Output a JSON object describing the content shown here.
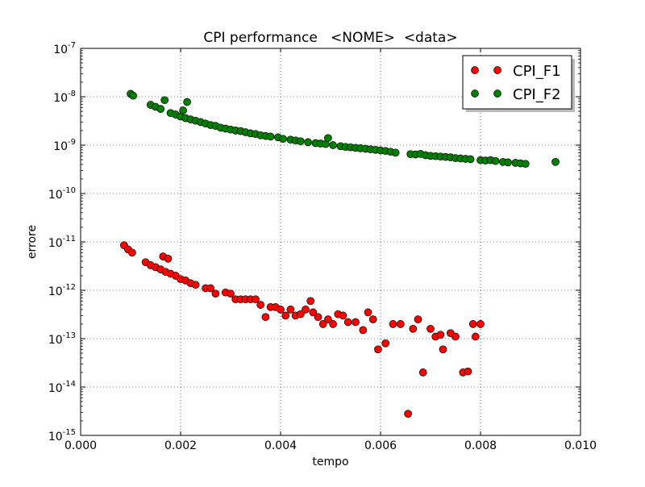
{
  "chart_data": {
    "type": "scatter",
    "title": "CPI performance   <NOME>  <data>",
    "xlabel": "tempo",
    "ylabel": "errore",
    "xlim": [
      0.0,
      0.01
    ],
    "ylim_log10": [
      -15,
      -7
    ],
    "yscale": "log",
    "grid": true,
    "legend_position": "top-right",
    "x_ticks": [
      "0.000",
      "0.002",
      "0.004",
      "0.006",
      "0.008",
      "0.010"
    ],
    "y_ticks": [
      {
        "base": "10",
        "exp": "-15"
      },
      {
        "base": "10",
        "exp": "-14"
      },
      {
        "base": "10",
        "exp": "-13"
      },
      {
        "base": "10",
        "exp": "-12"
      },
      {
        "base": "10",
        "exp": "-11"
      },
      {
        "base": "10",
        "exp": "-10"
      },
      {
        "base": "10",
        "exp": "-9"
      },
      {
        "base": "10",
        "exp": "-8"
      },
      {
        "base": "10",
        "exp": "-7"
      }
    ],
    "series": [
      {
        "name": "CPI_F1",
        "color": "#ff0000",
        "points": [
          [
            0.00087,
            8.5e-12
          ],
          [
            0.00095,
            7e-12
          ],
          [
            0.00103,
            6e-12
          ],
          [
            0.0013,
            3.8e-12
          ],
          [
            0.0014,
            3.3e-12
          ],
          [
            0.0015,
            3e-12
          ],
          [
            0.0016,
            2.7e-12
          ],
          [
            0.00165,
            5e-12
          ],
          [
            0.0017,
            2.4e-12
          ],
          [
            0.00175,
            4.5e-12
          ],
          [
            0.0018,
            2.2e-12
          ],
          [
            0.0019,
            2e-12
          ],
          [
            0.002,
            1.7e-12
          ],
          [
            0.0021,
            1.6e-12
          ],
          [
            0.0022,
            1.4e-12
          ],
          [
            0.0023,
            1.3e-12
          ],
          [
            0.0025,
            1.1e-12
          ],
          [
            0.0026,
            1.1e-12
          ],
          [
            0.0027,
            8.5e-13
          ],
          [
            0.0029,
            9e-13
          ],
          [
            0.003,
            8.5e-13
          ],
          [
            0.0031,
            6.5e-13
          ],
          [
            0.0032,
            6.5e-13
          ],
          [
            0.0033,
            6.5e-13
          ],
          [
            0.0034,
            6.5e-13
          ],
          [
            0.0035,
            6.5e-13
          ],
          [
            0.0036,
            5e-13
          ],
          [
            0.0037,
            2.8e-13
          ],
          [
            0.0038,
            4.5e-13
          ],
          [
            0.0039,
            4.5e-13
          ],
          [
            0.004,
            4e-13
          ],
          [
            0.0041,
            3e-13
          ],
          [
            0.0042,
            4e-13
          ],
          [
            0.0043,
            3e-13
          ],
          [
            0.0044,
            3.2e-13
          ],
          [
            0.0045,
            4e-13
          ],
          [
            0.0046,
            6e-13
          ],
          [
            0.00465,
            3.5e-13
          ],
          [
            0.00475,
            2.8e-13
          ],
          [
            0.00485,
            2e-13
          ],
          [
            0.00495,
            2.5e-13
          ],
          [
            0.00505,
            2e-13
          ],
          [
            0.00515,
            3.2e-13
          ],
          [
            0.00525,
            3e-13
          ],
          [
            0.00535,
            2.2e-13
          ],
          [
            0.0055,
            2.2e-13
          ],
          [
            0.00565,
            1.5e-13
          ],
          [
            0.00575,
            3.5e-13
          ],
          [
            0.00585,
            2.5e-13
          ],
          [
            0.00595,
            6e-14
          ],
          [
            0.0061,
            8e-14
          ],
          [
            0.00625,
            2e-13
          ],
          [
            0.0064,
            2e-13
          ],
          [
            0.00655,
            2.8e-15
          ],
          [
            0.00665,
            1.6e-13
          ],
          [
            0.00675,
            2.5e-13
          ],
          [
            0.00685,
            2e-14
          ],
          [
            0.007,
            1.6e-13
          ],
          [
            0.0071,
            1.1e-13
          ],
          [
            0.0072,
            1.2e-13
          ],
          [
            0.00725,
            6e-14
          ],
          [
            0.0074,
            1.3e-13
          ],
          [
            0.0075,
            1.1e-13
          ],
          [
            0.00765,
            2e-14
          ],
          [
            0.00775,
            2.1e-14
          ],
          [
            0.00785,
            2e-13
          ],
          [
            0.0079,
            1.1e-13
          ],
          [
            0.008,
            2e-13
          ]
        ]
      },
      {
        "name": "CPI_F2",
        "color": "#008000",
        "points": [
          [
            0.001,
            1.15e-08
          ],
          [
            0.00105,
            1.05e-08
          ],
          [
            0.0014,
            6.8e-09
          ],
          [
            0.0015,
            6.2e-09
          ],
          [
            0.0016,
            5.6e-09
          ],
          [
            0.00168,
            8.5e-09
          ],
          [
            0.0018,
            4.6e-09
          ],
          [
            0.0019,
            4.3e-09
          ],
          [
            0.002,
            3.9e-09
          ],
          [
            0.00205,
            5.2e-09
          ],
          [
            0.0021,
            3.6e-09
          ],
          [
            0.00213,
            7.8e-09
          ],
          [
            0.0022,
            3.4e-09
          ],
          [
            0.0023,
            3.2e-09
          ],
          [
            0.0024,
            3e-09
          ],
          [
            0.0025,
            2.8e-09
          ],
          [
            0.0026,
            2.6e-09
          ],
          [
            0.0027,
            2.5e-09
          ],
          [
            0.0028,
            2.3e-09
          ],
          [
            0.0029,
            2.2e-09
          ],
          [
            0.003,
            2.1e-09
          ],
          [
            0.0031,
            2e-09
          ],
          [
            0.0032,
            1.95e-09
          ],
          [
            0.0033,
            1.85e-09
          ],
          [
            0.0034,
            1.75e-09
          ],
          [
            0.0035,
            1.7e-09
          ],
          [
            0.0036,
            1.6e-09
          ],
          [
            0.0037,
            1.55e-09
          ],
          [
            0.0038,
            1.5e-09
          ],
          [
            0.00395,
            1.45e-09
          ],
          [
            0.00405,
            1.35e-09
          ],
          [
            0.0042,
            1.3e-09
          ],
          [
            0.0043,
            1.25e-09
          ],
          [
            0.0044,
            1.2e-09
          ],
          [
            0.00455,
            1.15e-09
          ],
          [
            0.0047,
            1.1e-09
          ],
          [
            0.0048,
            1.08e-09
          ],
          [
            0.0049,
            1.05e-09
          ],
          [
            0.00495,
            1.4e-09
          ],
          [
            0.00505,
            1e-09
          ],
          [
            0.0052,
            9.5e-10
          ],
          [
            0.0053,
            9.2e-10
          ],
          [
            0.0054,
            9e-10
          ],
          [
            0.0055,
            8.8e-10
          ],
          [
            0.0056,
            8.6e-10
          ],
          [
            0.0057,
            8.4e-10
          ],
          [
            0.0058,
            8.2e-10
          ],
          [
            0.0059,
            8e-10
          ],
          [
            0.006,
            7.8e-10
          ],
          [
            0.0061,
            7.6e-10
          ],
          [
            0.0062,
            7.3e-10
          ],
          [
            0.0063,
            7e-10
          ],
          [
            0.0066,
            6.5e-10
          ],
          [
            0.0067,
            6.4e-10
          ],
          [
            0.0068,
            6.6e-10
          ],
          [
            0.0069,
            6.2e-10
          ],
          [
            0.007,
            6e-10
          ],
          [
            0.0071,
            5.9e-10
          ],
          [
            0.0072,
            5.8e-10
          ],
          [
            0.0073,
            5.7e-10
          ],
          [
            0.0074,
            5.6e-10
          ],
          [
            0.0075,
            5.4e-10
          ],
          [
            0.0076,
            5.3e-10
          ],
          [
            0.0077,
            5.2e-10
          ],
          [
            0.0078,
            5.1e-10
          ],
          [
            0.008,
            4.9e-10
          ],
          [
            0.0081,
            4.8e-10
          ],
          [
            0.0082,
            4.9e-10
          ],
          [
            0.0083,
            4.7e-10
          ],
          [
            0.00845,
            4.5e-10
          ],
          [
            0.00855,
            4.4e-10
          ],
          [
            0.0087,
            4.3e-10
          ],
          [
            0.0088,
            4.2e-10
          ],
          [
            0.0089,
            4.1e-10
          ],
          [
            0.0095,
            4.5e-10
          ]
        ]
      }
    ]
  }
}
